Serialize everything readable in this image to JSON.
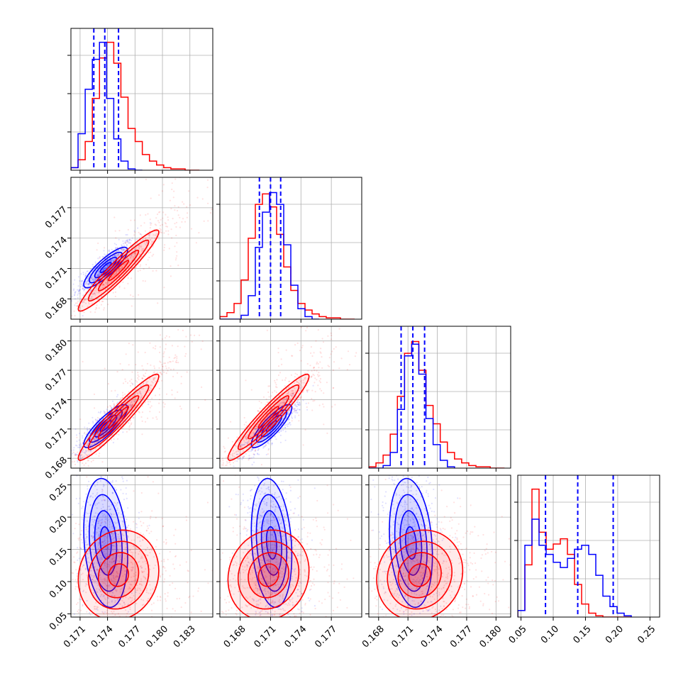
{
  "chart_data": {
    "type": "corner",
    "grid": true,
    "colors": {
      "series_a": "#0000ff",
      "series_b": "#ff0000"
    },
    "parameters": [
      {
        "range": [
          0.17,
          0.1855
        ],
        "ticks": [
          0.171,
          0.174,
          0.177,
          0.18,
          0.183
        ],
        "tick_labels": [
          "0.171",
          "0.174",
          "0.177",
          "0.180",
          "0.183"
        ]
      },
      {
        "range": [
          0.166,
          0.18
        ],
        "ticks": [
          0.168,
          0.171,
          0.174,
          0.177
        ],
        "tick_labels": [
          "0.168",
          "0.171",
          "0.174",
          "0.177"
        ]
      },
      {
        "range": [
          0.167,
          0.1815
        ],
        "ticks": [
          0.168,
          0.171,
          0.174,
          0.177,
          0.18
        ],
        "tick_labels": [
          "0.168",
          "0.171",
          "0.174",
          "0.177",
          "0.180"
        ]
      },
      {
        "range": [
          0.045,
          0.265
        ],
        "ticks": [
          0.05,
          0.1,
          0.15,
          0.2,
          0.25
        ],
        "tick_labels": [
          "0.05",
          "0.10",
          "0.15",
          "0.20",
          "0.25"
        ]
      }
    ],
    "series": [
      {
        "color": "#0000ff",
        "quantiles": [
          [
            0.1725,
            0.1737,
            0.1752
          ],
          [
            0.1699,
            0.171,
            0.172
          ],
          [
            0.1703,
            0.1715,
            0.1727
          ],
          [
            0.088,
            0.138,
            0.193
          ]
        ],
        "centers": [
          0.1738,
          0.1711,
          0.1713,
          0.16
        ],
        "sigmas": [
          0.0012,
          0.001,
          0.0011,
          0.05
        ],
        "correlations": [
          [
            1,
            0.85,
            0.85,
            -0.2
          ],
          [
            0.85,
            1,
            0.85,
            -0.2
          ],
          [
            0.85,
            0.85,
            1,
            -0.2
          ],
          [
            -0.2,
            -0.2,
            -0.2,
            1
          ]
        ],
        "hist_1d": [
          {
            "edges_from": 0.17,
            "bin_width": 0.00078,
            "heights": [
              0.02,
              0.28,
              0.62,
              0.85,
              0.98,
              0.55,
              0.24,
              0.07,
              0.01,
              0.0
            ]
          },
          {
            "edges_from": 0.166,
            "bin_width": 0.0007,
            "heights": [
              0,
              0,
              0,
              0.03,
              0.18,
              0.55,
              0.82,
              0.97,
              0.88,
              0.57,
              0.26,
              0.08,
              0.02,
              0
            ]
          },
          {
            "edges_from": 0.167,
            "bin_width": 0.00073,
            "heights": [
              0,
              0,
              0.02,
              0.12,
              0.45,
              0.86,
              0.95,
              0.72,
              0.38,
              0.18,
              0.06,
              0.01
            ]
          },
          {
            "edges_from": 0.045,
            "bin_width": 0.011,
            "heights": [
              0.05,
              0.55,
              0.75,
              0.55,
              0.48,
              0.42,
              0.38,
              0.45,
              0.52,
              0.55,
              0.48,
              0.32,
              0.16,
              0.08,
              0.03,
              0.01
            ]
          }
        ]
      },
      {
        "color": "#ff0000",
        "centers": [
          0.1752,
          0.1708,
          0.1722,
          0.11
        ],
        "sigmas": [
          0.0022,
          0.002,
          0.0022,
          0.035
        ],
        "correlations": [
          [
            1,
            0.95,
            0.95,
            0.1
          ],
          [
            0.95,
            1,
            0.95,
            0.1
          ],
          [
            0.95,
            0.95,
            1,
            0.1
          ],
          [
            0.1,
            0.1,
            0.1,
            1
          ]
        ],
        "hist_1d": [
          {
            "edges_from": 0.17,
            "bin_width": 0.00078,
            "heights": [
              0.02,
              0.08,
              0.22,
              0.55,
              0.86,
              0.98,
              0.82,
              0.56,
              0.32,
              0.22,
              0.12,
              0.07,
              0.04,
              0.02,
              0.01,
              0.01,
              0,
              0
            ]
          },
          {
            "edges_from": 0.166,
            "bin_width": 0.0007,
            "heights": [
              0.02,
              0.05,
              0.12,
              0.3,
              0.62,
              0.88,
              0.96,
              0.86,
              0.65,
              0.4,
              0.22,
              0.12,
              0.07,
              0.04,
              0.02,
              0.01,
              0.01,
              0,
              0
            ]
          },
          {
            "edges_from": 0.167,
            "bin_width": 0.00073,
            "heights": [
              0.01,
              0.04,
              0.1,
              0.26,
              0.55,
              0.88,
              0.97,
              0.75,
              0.48,
              0.34,
              0.2,
              0.12,
              0.07,
              0.04,
              0.02,
              0.01,
              0.01,
              0,
              0
            ]
          },
          {
            "edges_from": 0.045,
            "bin_width": 0.011,
            "heights": [
              0.05,
              0.4,
              0.98,
              0.65,
              0.52,
              0.56,
              0.6,
              0.48,
              0.25,
              0.1,
              0.03,
              0.01,
              0,
              0,
              0,
              0
            ]
          }
        ]
      }
    ]
  }
}
